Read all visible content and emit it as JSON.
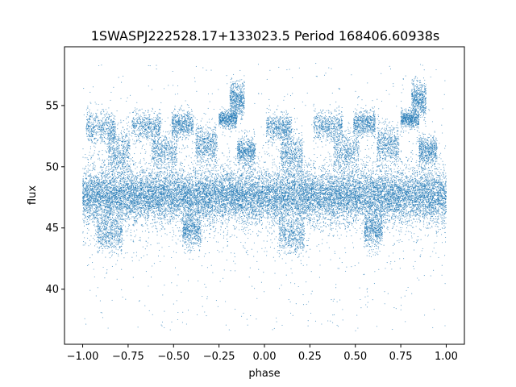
{
  "chart_data": {
    "type": "scatter",
    "title": "1SWASPJ222528.17+133023.5 Period 168406.60938s",
    "xlabel": "phase",
    "ylabel": "flux",
    "xlim": [
      -1.1,
      1.1
    ],
    "ylim": [
      35.5,
      59.8
    ],
    "x_ticks": [
      -1.0,
      -0.75,
      -0.5,
      -0.25,
      0.0,
      0.25,
      0.5,
      0.75,
      1.0
    ],
    "x_tick_labels": [
      "−1.00",
      "−0.75",
      "−0.50",
      "−0.25",
      "0.00",
      "0.25",
      "0.50",
      "0.75",
      "1.00"
    ],
    "y_ticks": [
      40,
      45,
      50,
      55
    ],
    "y_tick_labels": [
      "40",
      "45",
      "50",
      "55"
    ],
    "grid": false,
    "point_color": "#1f77b4",
    "phase_range": [
      -1.0,
      1.0
    ],
    "main_band": {
      "center": 47.6,
      "half_width": 1.6
    },
    "clusters": [
      {
        "x_center": -0.9,
        "x_halfwidth": 0.08,
        "y_center": 53.2,
        "y_spread": 0.7
      },
      {
        "x_center": -0.8,
        "x_halfwidth": 0.06,
        "y_center": 51.2,
        "y_spread": 1.0
      },
      {
        "x_center": -0.85,
        "x_halfwidth": 0.07,
        "y_center": 44.6,
        "y_spread": 0.8
      },
      {
        "x_center": -0.65,
        "x_halfwidth": 0.08,
        "y_center": 53.3,
        "y_spread": 0.6
      },
      {
        "x_center": -0.55,
        "x_halfwidth": 0.07,
        "y_center": 51.3,
        "y_spread": 0.9
      },
      {
        "x_center": -0.45,
        "x_halfwidth": 0.06,
        "y_center": 53.5,
        "y_spread": 0.5
      },
      {
        "x_center": -0.4,
        "x_halfwidth": 0.05,
        "y_center": 44.8,
        "y_spread": 0.7
      },
      {
        "x_center": -0.32,
        "x_halfwidth": 0.06,
        "y_center": 51.8,
        "y_spread": 0.8
      },
      {
        "x_center": -0.2,
        "x_halfwidth": 0.05,
        "y_center": 53.9,
        "y_spread": 0.4
      },
      {
        "x_center": -0.15,
        "x_halfwidth": 0.04,
        "y_center": 55.5,
        "y_spread": 0.7
      },
      {
        "x_center": -0.1,
        "x_halfwidth": 0.05,
        "y_center": 51.3,
        "y_spread": 0.6
      },
      {
        "x_center": 0.08,
        "x_halfwidth": 0.07,
        "y_center": 53.2,
        "y_spread": 0.6
      },
      {
        "x_center": 0.15,
        "x_halfwidth": 0.06,
        "y_center": 51.0,
        "y_spread": 0.9
      },
      {
        "x_center": 0.15,
        "x_halfwidth": 0.07,
        "y_center": 44.5,
        "y_spread": 0.8
      },
      {
        "x_center": 0.35,
        "x_halfwidth": 0.08,
        "y_center": 53.3,
        "y_spread": 0.6
      },
      {
        "x_center": 0.45,
        "x_halfwidth": 0.07,
        "y_center": 51.3,
        "y_spread": 0.9
      },
      {
        "x_center": 0.55,
        "x_halfwidth": 0.06,
        "y_center": 53.5,
        "y_spread": 0.5
      },
      {
        "x_center": 0.6,
        "x_halfwidth": 0.05,
        "y_center": 44.8,
        "y_spread": 0.7
      },
      {
        "x_center": 0.68,
        "x_halfwidth": 0.06,
        "y_center": 51.8,
        "y_spread": 0.8
      },
      {
        "x_center": 0.8,
        "x_halfwidth": 0.05,
        "y_center": 53.9,
        "y_spread": 0.4
      },
      {
        "x_center": 0.85,
        "x_halfwidth": 0.04,
        "y_center": 55.5,
        "y_spread": 0.7
      },
      {
        "x_center": 0.9,
        "x_halfwidth": 0.05,
        "y_center": 51.3,
        "y_spread": 0.6
      }
    ],
    "outlier_range": [
      36.5,
      58.5
    ]
  }
}
